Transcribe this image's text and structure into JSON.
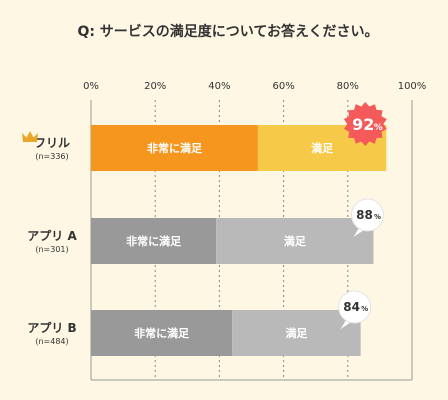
{
  "chart_data": {
    "type": "bar",
    "orientation": "horizontal",
    "stacked": true,
    "title": "Q: サービスの満足度についてお答えください。",
    "xlim": [
      0,
      100
    ],
    "x_ticks": [
      "0%",
      "20%",
      "40%",
      "60%",
      "80%",
      "100%"
    ],
    "grid": true,
    "categories": [
      {
        "name": "フリル",
        "sample": "(n=336)",
        "crown": true,
        "total_label": "92",
        "unit": "%"
      },
      {
        "name": "アプリ A",
        "sample": "(n=301)",
        "crown": false,
        "total_label": "88",
        "unit": "%"
      },
      {
        "name": "アプリ B",
        "sample": "(n=484)",
        "crown": false,
        "total_label": "84",
        "unit": "%"
      }
    ],
    "series": [
      {
        "name": "非常に満足",
        "values": [
          52,
          39,
          44
        ],
        "colors": [
          "#f5961e",
          "#999999",
          "#999999"
        ]
      },
      {
        "name": "満足",
        "values": [
          40,
          49,
          40
        ],
        "colors": [
          "#f7c948",
          "#b9b9b9",
          "#b9b9b9"
        ]
      }
    ],
    "highlight_color": "#f45a5a"
  }
}
